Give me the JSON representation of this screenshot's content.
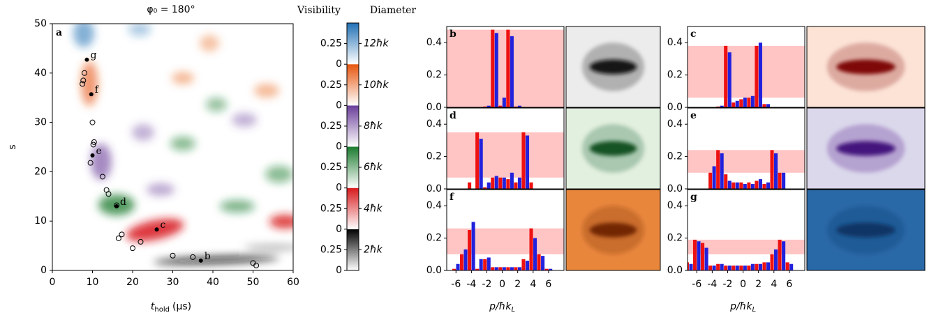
{
  "chart_data": [
    {
      "type": "scatter",
      "label": "a",
      "title": "φ₀ = 180°",
      "xlabel": [
        "t",
        "hold",
        "(μs)"
      ],
      "ylabel": "s",
      "xlim": [
        0,
        60
      ],
      "ylim": [
        0,
        50
      ],
      "xticks": [
        0,
        10,
        20,
        30,
        40,
        50,
        60
      ],
      "yticks": [
        0,
        10,
        20,
        30,
        40,
        50
      ],
      "points": {
        "x": [
          37,
          26,
          16,
          10,
          9.7,
          8.6
        ],
        "y": [
          2,
          8.3,
          13,
          23.3,
          35.7,
          42.7
        ],
        "labels": [
          "b",
          "c",
          "d",
          "e",
          "f",
          "g"
        ]
      },
      "open_points": {
        "x": [
          8,
          7.7,
          7.5,
          10,
          9.5,
          10.4,
          10.2,
          12.5,
          13.5,
          14,
          16,
          16.5,
          17.3,
          20,
          22,
          30,
          35,
          50,
          50.8
        ],
        "y": [
          40,
          38.5,
          37.8,
          30,
          21.8,
          26,
          25.5,
          19,
          16.3,
          15.5,
          13.2,
          6.5,
          7.3,
          4.5,
          5.8,
          3,
          2.7,
          1.5,
          1
        ]
      },
      "colorbar": {
        "headers": [
          "Visibility",
          "Diameter"
        ],
        "ylim": [
          0,
          0.5
        ],
        "yticks": [
          0,
          0.25
        ],
        "segments": [
          {
            "label": "2ħk",
            "color": "#000000"
          },
          {
            "label": "4ħk",
            "color": "#d7191c"
          },
          {
            "label": "6ħk",
            "color": "#1a7a2e"
          },
          {
            "label": "8ħk",
            "color": "#6a3d9a"
          },
          {
            "label": "10ħk",
            "color": "#e6550d"
          },
          {
            "label": "12ħk",
            "color": "#2171b5"
          }
        ]
      }
    },
    {
      "type": "bar",
      "label": "b",
      "x": [
        -7,
        -6,
        -5,
        -4,
        -3,
        -2,
        -1,
        0,
        1,
        2,
        3,
        4,
        5,
        6,
        7
      ],
      "xlim": [
        -7.2,
        8
      ],
      "ylim": [
        0,
        0.5
      ],
      "yticks": [
        {
          "value": 0,
          "label": "0.0"
        },
        {
          "value": 0.2,
          "label": "0.2"
        },
        {
          "value": 0.4,
          "label": "0.4"
        }
      ],
      "band": [
        0,
        0.48
      ],
      "band_color": "#ffc4c4",
      "image_color": "#111111",
      "image_background": "#ececec",
      "series": [
        {
          "color": "#ee1111",
          "values": [
            null,
            null,
            null,
            null,
            null,
            0.005,
            0.48,
            0.01,
            0.48,
            0.005,
            null,
            null,
            null,
            null,
            null
          ]
        },
        {
          "color": "#2222dd",
          "values": [
            null,
            null,
            null,
            null,
            null,
            0.01,
            0.46,
            0.06,
            0.44,
            0.01,
            null,
            null,
            null,
            null,
            null
          ]
        }
      ]
    },
    {
      "type": "bar",
      "label": "c",
      "x": [
        -7,
        -6,
        -5,
        -4,
        -3,
        -2,
        -1,
        0,
        1,
        2,
        3,
        4,
        5,
        6,
        7
      ],
      "xlim": [
        -7.2,
        8
      ],
      "ylim": [
        0,
        0.5
      ],
      "yticks": [
        {
          "value": 0,
          "label": "0.0"
        },
        {
          "value": 0.2,
          "label": "0.2"
        },
        {
          "value": 0.4,
          "label": "0.4"
        }
      ],
      "band": [
        0.06,
        0.38
      ],
      "band_color": "#ffc4c4",
      "image_color": "#7a0000",
      "image_background": "#fde3d6",
      "series": [
        {
          "color": "#ee1111",
          "values": [
            null,
            null,
            null,
            null,
            0.005,
            0.38,
            0.03,
            0.05,
            0.06,
            0.38,
            0.02,
            null,
            null,
            null,
            null
          ]
        },
        {
          "color": "#2222dd",
          "values": [
            null,
            null,
            null,
            null,
            0.01,
            0.34,
            0.04,
            0.06,
            0.07,
            0.4,
            0.02,
            null,
            null,
            null,
            null
          ]
        }
      ]
    },
    {
      "type": "bar",
      "label": "d",
      "x": [
        -7,
        -6,
        -5,
        -4,
        -3,
        -2,
        -1,
        0,
        1,
        2,
        3,
        4,
        5,
        6,
        7
      ],
      "xlim": [
        -7.2,
        8
      ],
      "ylim": [
        0,
        0.5
      ],
      "yticks": [
        {
          "value": 0,
          "label": "0.0"
        },
        {
          "value": 0.2,
          "label": "0.2"
        },
        {
          "value": 0.4,
          "label": "0.4"
        }
      ],
      "band": [
        0.07,
        0.35
      ],
      "band_color": "#ffc4c4",
      "image_color": "#0b4d1c",
      "image_background": "#e2f0df",
      "series": [
        {
          "color": "#ee1111",
          "values": [
            null,
            null,
            null,
            0.04,
            0.35,
            0.01,
            0.07,
            0.07,
            0.06,
            0.04,
            0.35,
            0.04,
            null,
            null,
            null
          ]
        },
        {
          "color": "#2222dd",
          "values": [
            null,
            null,
            null,
            null,
            0.31,
            0.04,
            0.08,
            0.07,
            0.1,
            0.07,
            0.33,
            null,
            null,
            null,
            null
          ]
        }
      ]
    },
    {
      "type": "bar",
      "label": "e",
      "x": [
        -7,
        -6,
        -5,
        -4,
        -3,
        -2,
        -1,
        0,
        1,
        2,
        3,
        4,
        5,
        6,
        7
      ],
      "xlim": [
        -7.2,
        8
      ],
      "ylim": [
        0,
        0.5
      ],
      "yticks": [
        {
          "value": 0,
          "label": "0.0"
        },
        {
          "value": 0.2,
          "label": "0.2"
        },
        {
          "value": 0.4,
          "label": "0.4"
        }
      ],
      "band": [
        0.1,
        0.24
      ],
      "band_color": "#ffc4c4",
      "image_color": "#40087a",
      "image_background": "#dcd8ec",
      "series": [
        {
          "color": "#ee1111",
          "values": [
            null,
            null,
            null,
            0.1,
            0.24,
            0.09,
            0.04,
            0.04,
            0.04,
            0.05,
            0.03,
            0.24,
            0.1,
            null,
            null
          ]
        },
        {
          "color": "#2222dd",
          "values": [
            null,
            null,
            null,
            0.14,
            0.22,
            0.05,
            0.04,
            0.03,
            0.03,
            0.06,
            0.04,
            0.22,
            0.1,
            null,
            null
          ]
        }
      ]
    },
    {
      "type": "bar",
      "label": "f",
      "x": [
        -7,
        -6,
        -5,
        -4,
        -3,
        -2,
        -1,
        0,
        1,
        2,
        3,
        4,
        5,
        6,
        7
      ],
      "xlim": [
        -7.2,
        8
      ],
      "ylim": [
        0,
        0.5
      ],
      "yticks": [
        {
          "value": 0,
          "label": "0.0"
        },
        {
          "value": 0.2,
          "label": "0.2"
        },
        {
          "value": 0.4,
          "label": "0.4"
        }
      ],
      "xticks": [
        -6,
        -4,
        -2,
        0,
        2,
        4,
        6
      ],
      "xlabel": [
        "p/ħk",
        "L"
      ],
      "band": [
        0.1,
        0.26
      ],
      "band_color": "#ffc4c4",
      "image_color": "#6e2500",
      "image_background": "#e8873c",
      "series": [
        {
          "color": "#ee1111",
          "values": [
            null,
            0.01,
            0.1,
            0.25,
            0.01,
            0.07,
            0.02,
            0.02,
            0.02,
            0.02,
            0.07,
            0.26,
            0.1,
            0.01,
            null
          ]
        },
        {
          "color": "#2222dd",
          "values": [
            null,
            0.04,
            0.13,
            0.3,
            0.07,
            0.08,
            0.02,
            0.02,
            0.02,
            0.02,
            0.06,
            0.2,
            0.09,
            0.01,
            null
          ]
        }
      ]
    },
    {
      "type": "bar",
      "label": "g",
      "x": [
        -7,
        -6,
        -5,
        -4,
        -3,
        -2,
        -1,
        0,
        1,
        2,
        3,
        4,
        5,
        6,
        7
      ],
      "xlim": [
        -7.2,
        8
      ],
      "ylim": [
        0,
        0.5
      ],
      "yticks": [
        {
          "value": 0,
          "label": "0.0"
        },
        {
          "value": 0.2,
          "label": "0.2"
        },
        {
          "value": 0.4,
          "label": "0.4"
        }
      ],
      "xticks": [
        -6,
        -4,
        -2,
        0,
        2,
        4,
        6
      ],
      "xlabel": [
        "p/ħk",
        "L"
      ],
      "band": [
        0.1,
        0.19
      ],
      "band_color": "#ffc4c4",
      "image_color": "#0d3563",
      "image_background": "#2a69a8",
      "series": [
        {
          "color": "#ee1111",
          "values": [
            0.05,
            0.19,
            0.17,
            0.03,
            0.04,
            0.03,
            0.03,
            0.03,
            0.03,
            0.04,
            0.05,
            0.1,
            0.19,
            0.05,
            null
          ]
        },
        {
          "color": "#2222dd",
          "values": [
            0.04,
            0.18,
            0.14,
            0.03,
            0.04,
            0.03,
            0.03,
            0.03,
            0.04,
            0.04,
            0.05,
            0.13,
            0.18,
            0.04,
            null
          ]
        }
      ]
    }
  ]
}
